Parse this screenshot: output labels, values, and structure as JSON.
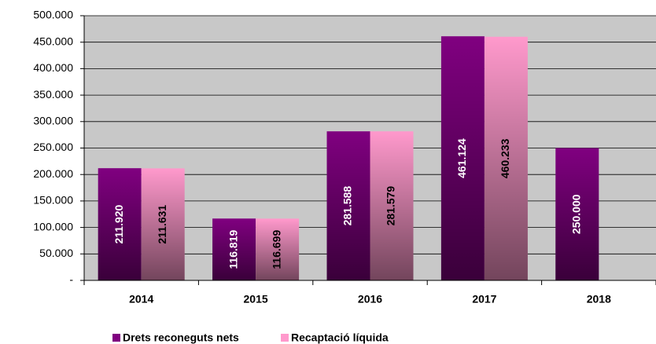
{
  "chart_data": {
    "type": "bar",
    "categories": [
      "2014",
      "2015",
      "2016",
      "2017",
      "2018"
    ],
    "series": [
      {
        "name": "Drets reconeguts nets",
        "color": "#800080",
        "values": [
          211920,
          116819,
          281588,
          461124,
          250000
        ],
        "value_labels": [
          "211.920",
          "116.819",
          "281.588",
          "461.124",
          "250.000"
        ]
      },
      {
        "name": "Recaptació líquida",
        "color": "#ff99cc",
        "values": [
          211631,
          116699,
          281579,
          460233,
          null
        ],
        "value_labels": [
          "211.631",
          "116.699",
          "281.579",
          "460.233",
          null
        ]
      }
    ],
    "ylim": [
      0,
      500000
    ],
    "yticks": [
      {
        "value": 0,
        "label": "-"
      },
      {
        "value": 50000,
        "label": "50.000"
      },
      {
        "value": 100000,
        "label": "100.000"
      },
      {
        "value": 150000,
        "label": "150.000"
      },
      {
        "value": 200000,
        "label": "200.000"
      },
      {
        "value": 250000,
        "label": "250.000"
      },
      {
        "value": 300000,
        "label": "300.000"
      },
      {
        "value": 350000,
        "label": "350.000"
      },
      {
        "value": 400000,
        "label": "400.000"
      },
      {
        "value": 450000,
        "label": "450.000"
      },
      {
        "value": 500000,
        "label": "500.000"
      }
    ],
    "grid": true
  }
}
